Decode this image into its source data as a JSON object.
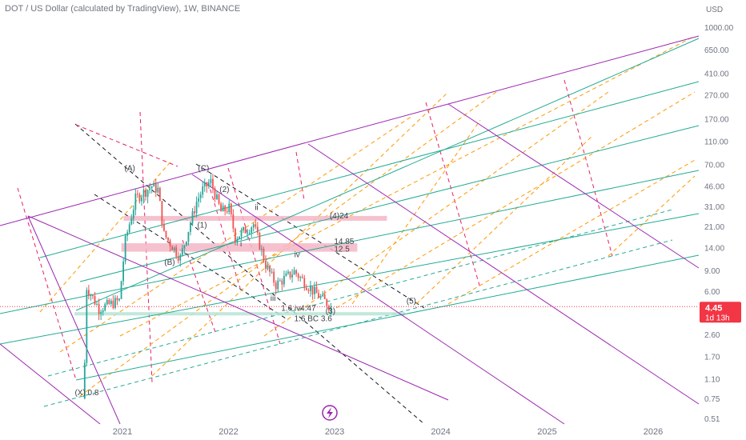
{
  "chart_data": {
    "type": "candlestick",
    "title": "DOT / US Dollar (calculated by TradingView), 1W, BINANCE",
    "currency_label": "USD",
    "y_scale": "log",
    "ylim": [
      0.49,
      1400
    ],
    "x_range": [
      "2020-07-01",
      "2026-12-20"
    ],
    "y_ticks": [
      "1000.00",
      "650.00",
      "410.00",
      "270.00",
      "170.00",
      "110.00",
      "70.00",
      "46.00",
      "31.00",
      "21.00",
      "14.00",
      "9.00",
      "6.00",
      "4.45",
      "2.60",
      "1.70",
      "1.10",
      "0.75",
      "0.51"
    ],
    "x_ticks": [
      {
        "label": "2021",
        "date": "2021-01-01"
      },
      {
        "label": "2022",
        "date": "2022-01-01"
      },
      {
        "label": "2023",
        "date": "2023-01-01"
      },
      {
        "label": "2024",
        "date": "2024-01-01"
      },
      {
        "label": "2025",
        "date": "2025-01-01"
      },
      {
        "label": "2026",
        "date": "2026-01-01"
      }
    ],
    "price_anchors": [
      {
        "date": "2020-08-24",
        "price": 1.5
      },
      {
        "date": "2020-08-31",
        "price": 6.5
      },
      {
        "date": "2020-10-12",
        "price": 4.3
      },
      {
        "date": "2020-12-21",
        "price": 5.0
      },
      {
        "date": "2021-01-11",
        "price": 16.0
      },
      {
        "date": "2021-02-15",
        "price": 36.0
      },
      {
        "date": "2021-04-12",
        "price": 46.0
      },
      {
        "date": "2021-05-03",
        "price": 43.0
      },
      {
        "date": "2021-05-24",
        "price": 18.0
      },
      {
        "date": "2021-07-19",
        "price": 11.5
      },
      {
        "date": "2021-09-13",
        "price": 34.0
      },
      {
        "date": "2021-10-04",
        "price": 43.0
      },
      {
        "date": "2021-11-01",
        "price": 50.0
      },
      {
        "date": "2021-12-06",
        "price": 28.0
      },
      {
        "date": "2022-01-03",
        "price": 30.0
      },
      {
        "date": "2022-01-24",
        "price": 17.0
      },
      {
        "date": "2022-03-28",
        "price": 22.0
      },
      {
        "date": "2022-05-09",
        "price": 10.0
      },
      {
        "date": "2022-06-13",
        "price": 6.8
      },
      {
        "date": "2022-08-15",
        "price": 8.8
      },
      {
        "date": "2022-10-17",
        "price": 6.1
      },
      {
        "date": "2022-11-14",
        "price": 5.3
      },
      {
        "date": "2022-12-19",
        "price": 4.45
      }
    ],
    "last_price": {
      "value": "4.45",
      "countdown": "1d 13h",
      "color": "#f23645"
    },
    "zones": [
      {
        "color": "#f4b6c6",
        "from_date": "2021-01-05",
        "to_date": "2023-06-30",
        "low": 23.5,
        "high": 25.8
      },
      {
        "color": "#f4b6c6",
        "from_date": "2020-12-28",
        "to_date": "2023-03-20",
        "low": 12.9,
        "high": 15.2
      },
      {
        "color": "#b9e4d6",
        "from_date": "2020-07-20",
        "to_date": "2023-09-01",
        "low": 3.75,
        "high": 4.0
      }
    ],
    "annotations": [
      {
        "text": "(A)",
        "date": "2021-01-08",
        "price": 62
      },
      {
        "text": "(C)",
        "date": "2021-09-18",
        "price": 62
      },
      {
        "text": "(2)",
        "date": "2021-12-01",
        "price": 41
      },
      {
        "text": "ii",
        "date": "2022-04-01",
        "price": 29
      },
      {
        "text": "(4)24",
        "date": "2022-12-15",
        "price": 24.5
      },
      {
        "text": "(1)",
        "date": "2021-09-15",
        "price": 20.5
      },
      {
        "text": "i",
        "date": "2022-02-10",
        "price": 14.3
      },
      {
        "text": "14.85",
        "date": "2022-12-30",
        "price": 15.0
      },
      {
        "text": "12.5",
        "date": "2022-12-30",
        "price": 12.9
      },
      {
        "text": "(B)",
        "date": "2021-05-25",
        "price": 10.0
      },
      {
        "text": "iv",
        "date": "2022-08-15",
        "price": 11.6
      },
      {
        "text": "iii",
        "date": "2022-05-25",
        "price": 5.0
      },
      {
        "text": "1.6 iv4.47",
        "date": "2022-07-01",
        "price": 4.1
      },
      {
        "text": "(3)",
        "date": "2022-12-01",
        "price": 3.9
      },
      {
        "text": "1.6 BC 3.6",
        "date": "2022-08-15",
        "price": 3.35
      },
      {
        "text": "(5)",
        "date": "2023-09-05",
        "price": 4.7
      },
      {
        "text": "(X) 0.8",
        "date": "2020-07-21",
        "price": 0.8
      }
    ],
    "grid": false,
    "legend": "none"
  },
  "colors": {
    "text": "#6f7480",
    "bull": "#26a69a",
    "bear": "#ef5350",
    "teal_line": "#22ab94",
    "purple_line": "#9c27b0",
    "pink_dash": "#e91e63",
    "orange_dash": "#ff9800",
    "black_dash": "#131722",
    "last_price": "#f23645"
  },
  "icons": {
    "logo_icon": "lightning-bolt-in-circle"
  }
}
